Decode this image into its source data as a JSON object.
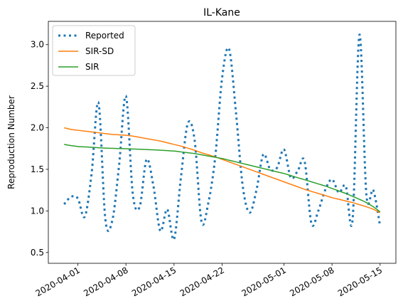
{
  "chart_data": {
    "type": "line",
    "title": "IL-Kane",
    "ylabel": "Reproduction Number",
    "x": [
      "2020-03-30",
      "2020-03-31",
      "2020-04-01",
      "2020-04-02",
      "2020-04-03",
      "2020-04-04",
      "2020-04-05",
      "2020-04-06",
      "2020-04-07",
      "2020-04-08",
      "2020-04-09",
      "2020-04-10",
      "2020-04-11",
      "2020-04-12",
      "2020-04-13",
      "2020-04-14",
      "2020-04-15",
      "2020-04-16",
      "2020-04-17",
      "2020-04-18",
      "2020-04-19",
      "2020-04-20",
      "2020-04-21",
      "2020-04-22",
      "2020-04-23",
      "2020-04-24",
      "2020-04-25",
      "2020-04-26",
      "2020-04-27",
      "2020-04-28",
      "2020-04-29",
      "2020-04-30",
      "2020-05-01",
      "2020-05-02",
      "2020-05-03",
      "2020-05-04",
      "2020-05-05",
      "2020-05-06",
      "2020-05-07",
      "2020-05-08",
      "2020-05-09",
      "2020-05-10",
      "2020-05-11",
      "2020-05-12",
      "2020-05-13",
      "2020-05-14",
      "2020-05-15"
    ],
    "series": [
      {
        "name": "Reported",
        "color": "#1f77b4",
        "style": "dotted",
        "values": [
          1.08,
          1.17,
          1.15,
          0.93,
          1.45,
          2.3,
          0.9,
          0.88,
          1.55,
          2.38,
          1.2,
          1.05,
          1.62,
          1.3,
          0.76,
          1.02,
          0.66,
          1.4,
          2.05,
          1.85,
          0.87,
          1.1,
          1.65,
          2.6,
          2.95,
          2.2,
          1.3,
          0.98,
          1.25,
          1.68,
          1.5,
          1.52,
          1.74,
          1.4,
          1.48,
          1.6,
          0.85,
          1.0,
          1.25,
          1.38,
          1.22,
          1.3,
          0.9,
          3.12,
          1.2,
          1.25,
          0.82
        ]
      },
      {
        "name": "SIR-SD",
        "color": "#ff7f0e",
        "style": "solid",
        "values": [
          2.0,
          1.98,
          1.97,
          1.96,
          1.95,
          1.94,
          1.93,
          1.92,
          1.915,
          1.91,
          1.9,
          1.885,
          1.87,
          1.855,
          1.84,
          1.82,
          1.8,
          1.78,
          1.755,
          1.73,
          1.7,
          1.675,
          1.65,
          1.62,
          1.59,
          1.56,
          1.53,
          1.5,
          1.47,
          1.44,
          1.41,
          1.38,
          1.35,
          1.32,
          1.29,
          1.26,
          1.235,
          1.21,
          1.185,
          1.16,
          1.14,
          1.12,
          1.1,
          1.075,
          1.05,
          1.02,
          0.98
        ]
      },
      {
        "name": "SIR",
        "color": "#2ca02c",
        "style": "solid",
        "values": [
          1.8,
          1.785,
          1.775,
          1.77,
          1.765,
          1.76,
          1.755,
          1.753,
          1.75,
          1.748,
          1.745,
          1.742,
          1.738,
          1.735,
          1.73,
          1.725,
          1.72,
          1.71,
          1.7,
          1.69,
          1.675,
          1.66,
          1.645,
          1.63,
          1.61,
          1.59,
          1.57,
          1.55,
          1.53,
          1.51,
          1.49,
          1.47,
          1.45,
          1.425,
          1.4,
          1.375,
          1.35,
          1.325,
          1.3,
          1.27,
          1.24,
          1.21,
          1.175,
          1.14,
          1.1,
          1.05,
          0.99
        ]
      }
    ],
    "xlim": [
      "2020-03-27T16:48:00Z",
      "2020-05-17T07:12:00Z"
    ],
    "xticks": [
      "2020-04-01",
      "2020-04-08",
      "2020-04-15",
      "2020-04-22",
      "2020-05-01",
      "2020-05-08",
      "2020-05-15"
    ],
    "ylim": [
      0.37,
      3.28
    ],
    "yticks": [
      {
        "value": 0.5,
        "label": "0.5"
      },
      {
        "value": 1,
        "label": "1.0"
      },
      {
        "value": 1.5,
        "label": "1.5"
      },
      {
        "value": 2,
        "label": "2.0"
      },
      {
        "value": 2.5,
        "label": "2.5"
      },
      {
        "value": 3,
        "label": "3.0"
      }
    ],
    "legend": "upper left"
  }
}
